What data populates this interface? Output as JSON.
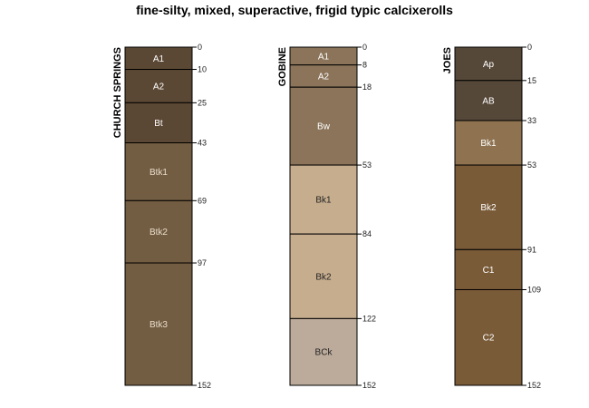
{
  "title": "fine-silty, mixed, superactive, frigid typic calcixerolls",
  "chart_data": {
    "type": "soil-profile-sketch",
    "title": "fine-silty, mixed, superactive, frigid typic calcixerolls",
    "depth_unit": "cm",
    "depth_range": [
      0,
      152
    ],
    "profiles": [
      {
        "name": "CHURCH SPRINGS",
        "horizons": [
          {
            "name": "A1",
            "top": 0,
            "bottom": 10,
            "color": "#5b4834",
            "text_color": "#ffffff"
          },
          {
            "name": "A2",
            "top": 10,
            "bottom": 25,
            "color": "#5b4834",
            "text_color": "#ffffff"
          },
          {
            "name": "Bt",
            "top": 25,
            "bottom": 43,
            "color": "#5b4834",
            "text_color": "#ffffff"
          },
          {
            "name": "Btk1",
            "top": 43,
            "bottom": 69,
            "color": "#735d42",
            "text_color": "#e8dccb"
          },
          {
            "name": "Btk2",
            "top": 69,
            "bottom": 97,
            "color": "#735d42",
            "text_color": "#e8dccb"
          },
          {
            "name": "Btk3",
            "top": 97,
            "bottom": 152,
            "color": "#735d42",
            "text_color": "#e8dccb"
          }
        ]
      },
      {
        "name": "GOBINE",
        "horizons": [
          {
            "name": "A1",
            "top": 0,
            "bottom": 8,
            "color": "#8b7459",
            "text_color": "#ffffff"
          },
          {
            "name": "A2",
            "top": 8,
            "bottom": 18,
            "color": "#8b7459",
            "text_color": "#ffffff"
          },
          {
            "name": "Bw",
            "top": 18,
            "bottom": 53,
            "color": "#8b7459",
            "text_color": "#ffffff"
          },
          {
            "name": "Bk1",
            "top": 53,
            "bottom": 84,
            "color": "#c6ad8e",
            "text_color": "#222222"
          },
          {
            "name": "Bk2",
            "top": 84,
            "bottom": 122,
            "color": "#c6ad8e",
            "text_color": "#222222"
          },
          {
            "name": "BCk",
            "top": 122,
            "bottom": 152,
            "color": "#bcab9b",
            "text_color": "#222222"
          }
        ]
      },
      {
        "name": "JOES",
        "horizons": [
          {
            "name": "Ap",
            "top": 0,
            "bottom": 15,
            "color": "#564839",
            "text_color": "#ffffff"
          },
          {
            "name": "AB",
            "top": 15,
            "bottom": 33,
            "color": "#564839",
            "text_color": "#ffffff"
          },
          {
            "name": "Bk1",
            "top": 33,
            "bottom": 53,
            "color": "#8f7351",
            "text_color": "#ffffff"
          },
          {
            "name": "Bk2",
            "top": 53,
            "bottom": 91,
            "color": "#7a5b38",
            "text_color": "#ffffff"
          },
          {
            "name": "C1",
            "top": 91,
            "bottom": 109,
            "color": "#7a5b38",
            "text_color": "#ffffff"
          },
          {
            "name": "C2",
            "top": 109,
            "bottom": 152,
            "color": "#7a5b38",
            "text_color": "#ffffff"
          }
        ]
      }
    ]
  }
}
